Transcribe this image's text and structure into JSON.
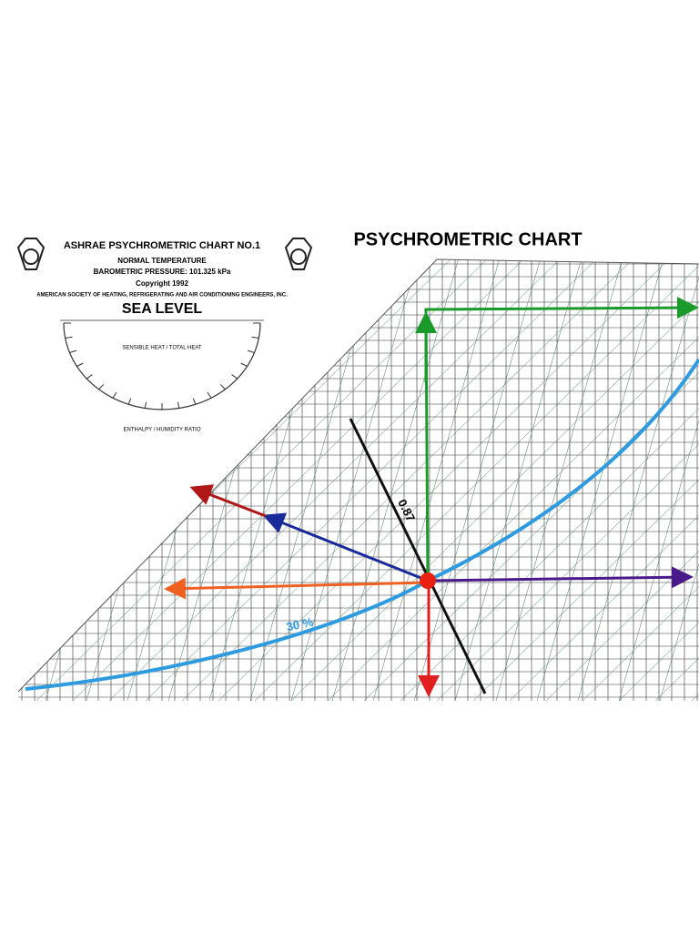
{
  "header": {
    "title": "PSYCHROMETRIC CHART"
  },
  "legend": {
    "chart_name": "ASHRAE PSYCHROMETRIC CHART NO.1",
    "temperature": "NORMAL TEMPERATURE",
    "pressure": "BAROMETRIC PRESSURE: 101.325 kPa",
    "copyright": "Copyright 1992",
    "publisher": "AMERICAN SOCIETY OF HEATING, REFRIGERATING AND AIR CONDITIONING ENGINEERS, INC.",
    "altitude": "SEA LEVEL",
    "sensible_ratio": "SENSIBLE HEAT / TOTAL HEAT",
    "enthalpy_ratio": "ENTHALPY / HUMIDITY RATIO"
  },
  "annotations": {
    "shr_line": "0.87",
    "rh_curve": "30 %"
  }
}
